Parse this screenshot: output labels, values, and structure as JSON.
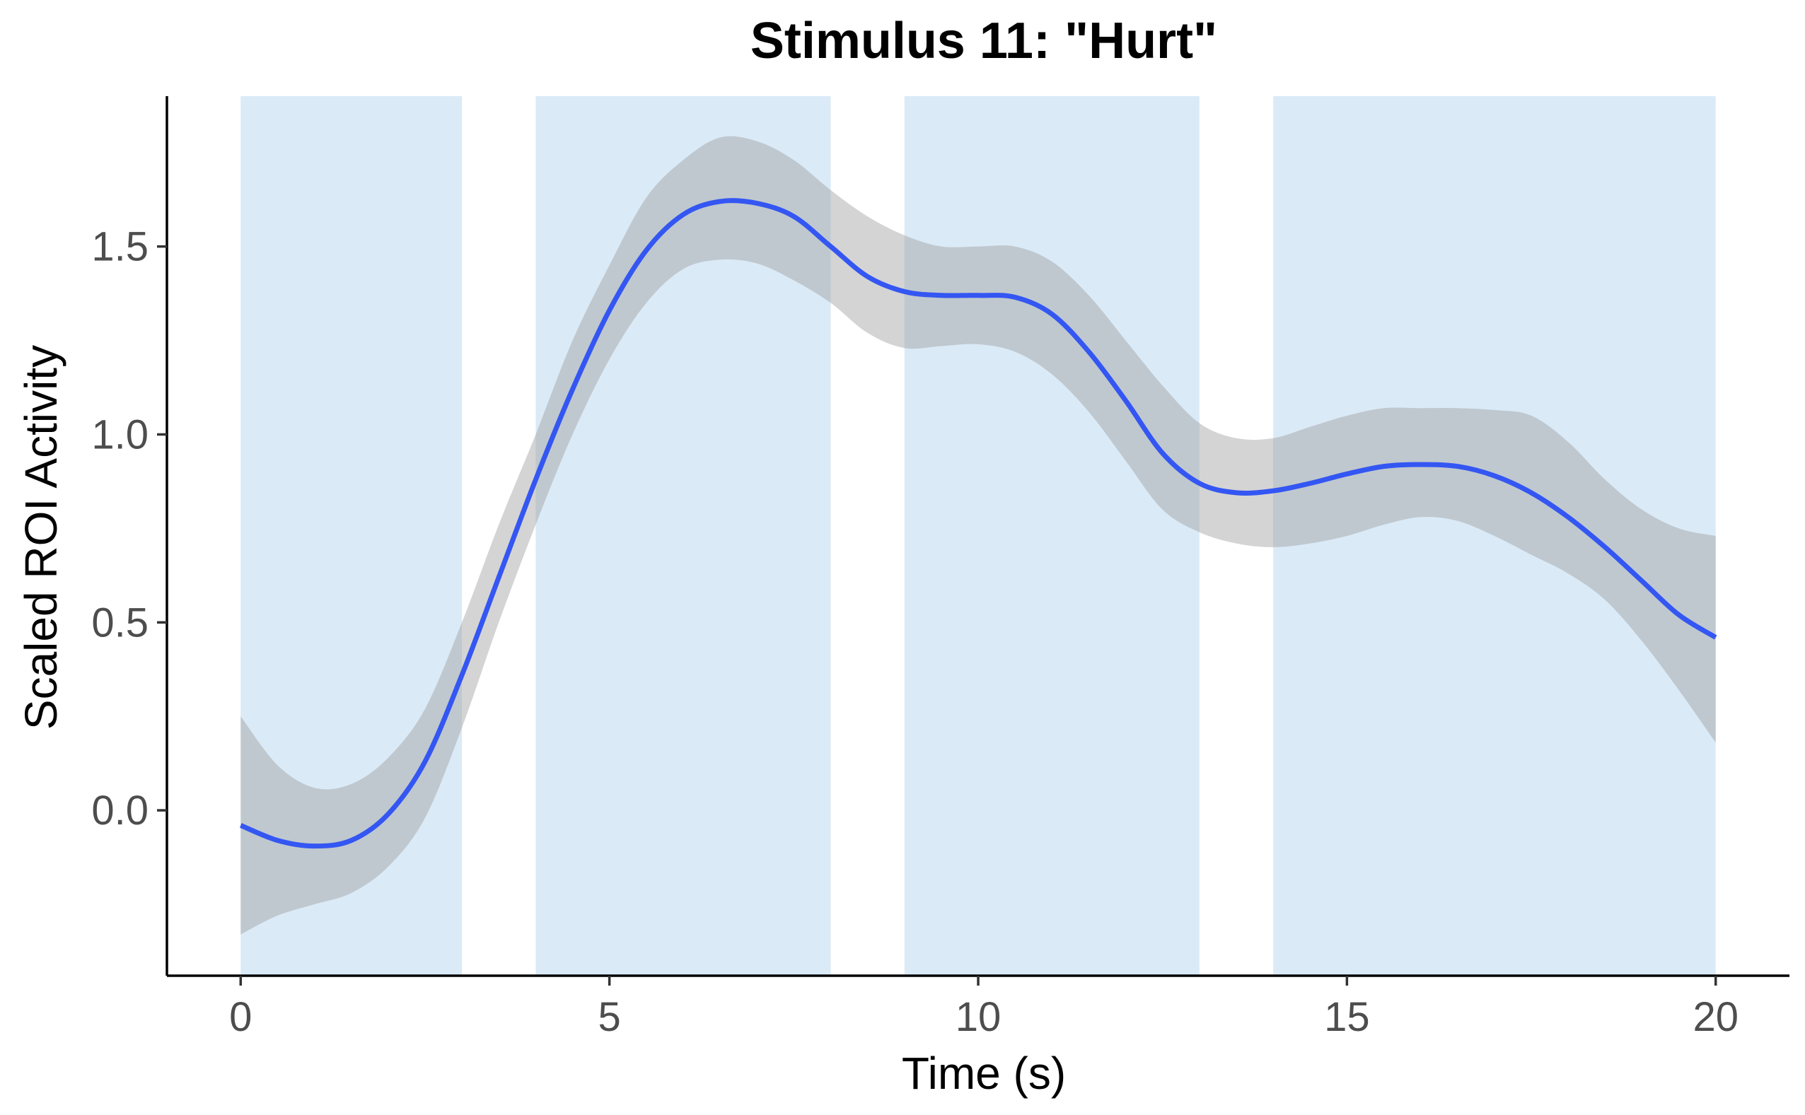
{
  "chart_data": {
    "type": "line",
    "title": "Stimulus 11: \"Hurt\"",
    "xlabel": "Time (s)",
    "ylabel": "Scaled ROI Activity",
    "xlim": [
      -1,
      21
    ],
    "ylim": [
      -0.44,
      1.9
    ],
    "xticks": [
      0,
      5,
      10,
      15,
      20
    ],
    "xtick_labels": [
      "0",
      "5",
      "10",
      "15",
      "20"
    ],
    "yticks": [
      0.0,
      0.5,
      1.0,
      1.5
    ],
    "ytick_labels": [
      "0.0",
      "0.5",
      "1.0",
      "1.5"
    ],
    "grid": false,
    "colors": {
      "line": "#3456f2",
      "ribbon": "#999999",
      "shade": "#dbeaf7",
      "axis": "#000000"
    },
    "shaded_intervals": [
      [
        0,
        3
      ],
      [
        4,
        8
      ],
      [
        9,
        13
      ],
      [
        14,
        20
      ]
    ],
    "series": [
      {
        "x": [
          0,
          0.5,
          1,
          1.5,
          2,
          2.5,
          3,
          3.5,
          4,
          4.5,
          5,
          5.5,
          6,
          6.5,
          7,
          7.5,
          8,
          8.5,
          9,
          9.5,
          10,
          10.5,
          11,
          11.5,
          12,
          12.5,
          13,
          13.5,
          14,
          14.5,
          15,
          15.5,
          16,
          16.5,
          17,
          17.5,
          18,
          18.5,
          19,
          19.5,
          20
        ],
        "y": [
          -0.04,
          -0.08,
          -0.095,
          -0.08,
          -0.01,
          0.13,
          0.36,
          0.62,
          0.88,
          1.12,
          1.33,
          1.49,
          1.585,
          1.62,
          1.615,
          1.58,
          1.5,
          1.42,
          1.38,
          1.37,
          1.37,
          1.365,
          1.32,
          1.22,
          1.09,
          0.95,
          0.87,
          0.845,
          0.85,
          0.87,
          0.895,
          0.915,
          0.92,
          0.915,
          0.89,
          0.845,
          0.78,
          0.7,
          0.61,
          0.52,
          0.46
        ],
        "lower": [
          -0.33,
          -0.28,
          -0.25,
          -0.22,
          -0.15,
          -0.02,
          0.22,
          0.5,
          0.76,
          1.0,
          1.2,
          1.35,
          1.44,
          1.465,
          1.455,
          1.41,
          1.35,
          1.27,
          1.23,
          1.235,
          1.24,
          1.22,
          1.16,
          1.06,
          0.93,
          0.8,
          0.74,
          0.71,
          0.7,
          0.71,
          0.73,
          0.76,
          0.78,
          0.77,
          0.73,
          0.68,
          0.63,
          0.56,
          0.45,
          0.32,
          0.18
        ],
        "upper": [
          0.25,
          0.12,
          0.06,
          0.07,
          0.14,
          0.27,
          0.5,
          0.76,
          1.0,
          1.25,
          1.45,
          1.63,
          1.73,
          1.79,
          1.78,
          1.73,
          1.65,
          1.58,
          1.53,
          1.5,
          1.5,
          1.5,
          1.46,
          1.37,
          1.25,
          1.13,
          1.03,
          0.99,
          0.99,
          1.02,
          1.05,
          1.07,
          1.07,
          1.07,
          1.065,
          1.05,
          0.98,
          0.88,
          0.8,
          0.75,
          0.73
        ]
      }
    ]
  }
}
